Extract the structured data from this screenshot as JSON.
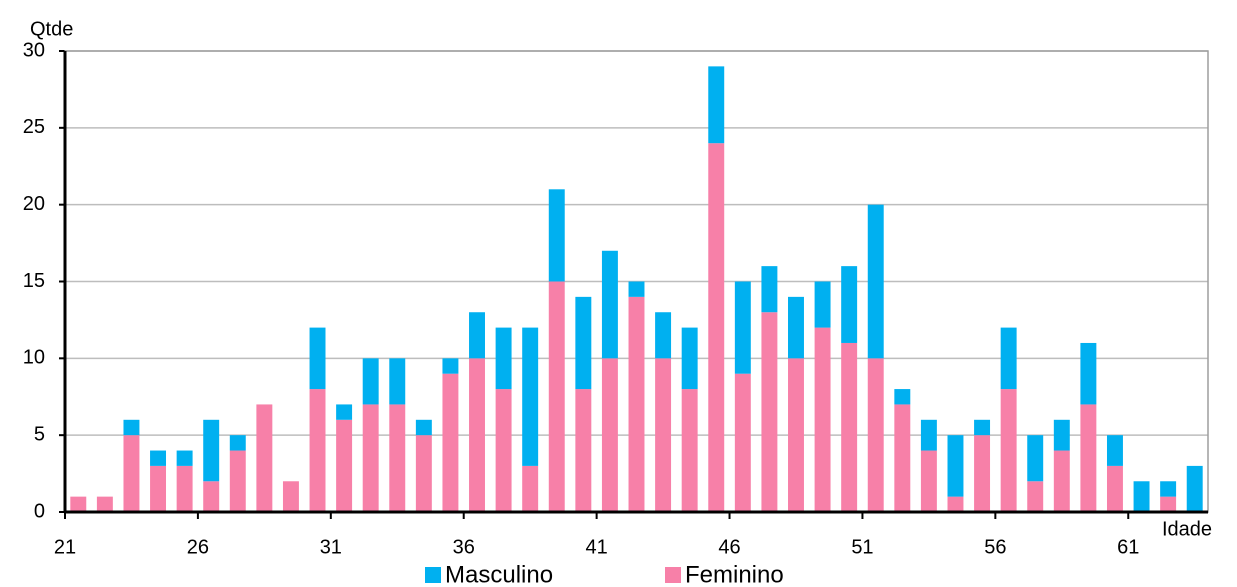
{
  "chart_data": {
    "type": "bar",
    "stacked": true,
    "x_label": "Idade",
    "y_label": "Qtde",
    "categories": [
      "21",
      null,
      null,
      null,
      null,
      "26",
      null,
      null,
      null,
      null,
      "31",
      null,
      null,
      null,
      null,
      "36",
      null,
      null,
      null,
      null,
      "41",
      null,
      null,
      null,
      null,
      "46",
      null,
      null,
      null,
      null,
      "51",
      null,
      null,
      null,
      null,
      "56",
      null,
      null,
      null,
      null,
      "61",
      null,
      null
    ],
    "series": [
      {
        "name": "Masculino",
        "color": "#00b0f0",
        "values": [
          0,
          0,
          1,
          1,
          1,
          4,
          1,
          0,
          0,
          4,
          1,
          3,
          3,
          1,
          1,
          3,
          4,
          9,
          6,
          6,
          7,
          1,
          3,
          4,
          5,
          6,
          3,
          4,
          3,
          5,
          10,
          1,
          2,
          4,
          1,
          4,
          3,
          2,
          4,
          2,
          2,
          1,
          3
        ]
      },
      {
        "name": "Feminino",
        "color": "#f780a8",
        "values": [
          1,
          1,
          5,
          3,
          3,
          2,
          4,
          7,
          2,
          8,
          6,
          7,
          7,
          5,
          9,
          10,
          8,
          3,
          15,
          8,
          10,
          14,
          10,
          8,
          24,
          9,
          13,
          10,
          12,
          11,
          10,
          7,
          4,
          1,
          5,
          8,
          2,
          4,
          7,
          3,
          0,
          1,
          0
        ]
      }
    ],
    "ylim": [
      0,
      30
    ],
    "yticks": [
      0,
      5,
      10,
      15,
      20,
      25,
      30
    ],
    "grid": true
  }
}
